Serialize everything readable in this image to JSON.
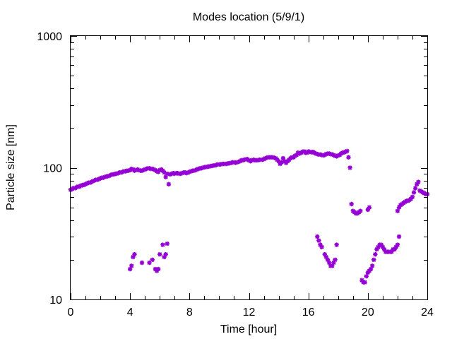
{
  "chart_data": {
    "type": "scatter",
    "title": "Modes location (5/9/1)",
    "xlabel": "Time [hour]",
    "ylabel": "Particle size [nm]",
    "xlim": [
      0,
      24
    ],
    "ylim": [
      10,
      1000
    ],
    "yscale": "log",
    "x_ticks": [
      0,
      4,
      8,
      12,
      16,
      20,
      24
    ],
    "x_tick_labels": [
      "0",
      "4",
      "8",
      "12",
      "16",
      "20",
      "24"
    ],
    "y_ticks": [
      10,
      100,
      1000
    ],
    "y_tick_labels": [
      "10",
      "100",
      "1000"
    ],
    "y_minor_ticks": [
      20,
      30,
      40,
      50,
      60,
      70,
      80,
      90,
      200,
      300,
      400,
      500,
      600,
      700,
      800,
      900
    ],
    "x_minor_ticks": [
      1,
      2,
      3,
      5,
      6,
      7,
      9,
      10,
      11,
      13,
      14,
      15,
      17,
      18,
      19,
      21,
      22,
      23
    ],
    "grid": false,
    "legend": "none",
    "marker_color": "#9400d3",
    "series": [
      {
        "values_xy": [
          [
            0.0,
            68
          ],
          [
            0.1,
            69
          ],
          [
            0.2,
            70
          ],
          [
            0.3,
            70
          ],
          [
            0.4,
            71
          ],
          [
            0.5,
            72
          ],
          [
            0.6,
            72
          ],
          [
            0.7,
            73
          ],
          [
            0.8,
            74
          ],
          [
            0.9,
            74
          ],
          [
            1.0,
            75
          ],
          [
            1.1,
            76
          ],
          [
            1.2,
            77
          ],
          [
            1.3,
            77
          ],
          [
            1.4,
            78
          ],
          [
            1.5,
            79
          ],
          [
            1.6,
            80
          ],
          [
            1.7,
            81
          ],
          [
            1.8,
            81
          ],
          [
            1.9,
            82
          ],
          [
            2.0,
            83
          ],
          [
            2.1,
            84
          ],
          [
            2.2,
            84
          ],
          [
            2.3,
            85
          ],
          [
            2.4,
            86
          ],
          [
            2.5,
            86
          ],
          [
            2.6,
            87
          ],
          [
            2.7,
            88
          ],
          [
            2.8,
            89
          ],
          [
            2.9,
            89
          ],
          [
            3.0,
            90
          ],
          [
            3.1,
            90
          ],
          [
            3.2,
            91
          ],
          [
            3.3,
            92
          ],
          [
            3.4,
            92
          ],
          [
            3.5,
            93
          ],
          [
            3.6,
            94
          ],
          [
            3.7,
            94
          ],
          [
            3.8,
            95
          ],
          [
            3.9,
            95
          ],
          [
            4.0,
            96
          ],
          [
            4.1,
            98
          ],
          [
            4.2,
            97
          ],
          [
            4.3,
            95
          ],
          [
            4.4,
            96
          ],
          [
            4.5,
            97
          ],
          [
            4.6,
            96
          ],
          [
            4.7,
            95
          ],
          [
            4.8,
            95
          ],
          [
            4.9,
            96
          ],
          [
            5.0,
            97
          ],
          [
            5.1,
            98
          ],
          [
            5.2,
            99
          ],
          [
            5.3,
            99
          ],
          [
            5.4,
            98
          ],
          [
            5.5,
            98
          ],
          [
            5.6,
            97
          ],
          [
            5.7,
            96
          ],
          [
            5.8,
            94
          ],
          [
            5.9,
            93
          ],
          [
            6.0,
            96
          ],
          [
            6.1,
            97
          ],
          [
            6.2,
            95
          ],
          [
            6.3,
            92
          ],
          [
            6.4,
            85
          ],
          [
            6.5,
            90
          ],
          [
            6.6,
            75
          ],
          [
            6.7,
            89
          ],
          [
            6.8,
            90
          ],
          [
            6.9,
            91
          ],
          [
            7.0,
            90
          ],
          [
            7.1,
            91
          ],
          [
            7.2,
            91
          ],
          [
            7.3,
            90
          ],
          [
            7.4,
            90
          ],
          [
            7.5,
            91
          ],
          [
            7.6,
            92
          ],
          [
            7.7,
            92
          ],
          [
            7.8,
            91
          ],
          [
            7.9,
            92
          ],
          [
            8.0,
            93
          ],
          [
            8.1,
            94
          ],
          [
            8.2,
            95
          ],
          [
            8.3,
            95
          ],
          [
            8.4,
            96
          ],
          [
            8.5,
            97
          ],
          [
            8.6,
            98
          ],
          [
            8.7,
            99
          ],
          [
            8.8,
            99
          ],
          [
            8.9,
            100
          ],
          [
            9.0,
            101
          ],
          [
            9.1,
            101
          ],
          [
            9.2,
            102
          ],
          [
            9.3,
            102
          ],
          [
            9.4,
            103
          ],
          [
            9.5,
            103
          ],
          [
            9.6,
            104
          ],
          [
            9.7,
            104
          ],
          [
            9.8,
            105
          ],
          [
            9.9,
            106
          ],
          [
            10.0,
            106
          ],
          [
            10.1,
            106
          ],
          [
            10.2,
            107
          ],
          [
            10.3,
            107
          ],
          [
            10.4,
            107
          ],
          [
            10.5,
            107
          ],
          [
            10.6,
            108
          ],
          [
            10.7,
            108
          ],
          [
            10.8,
            109
          ],
          [
            10.9,
            110
          ],
          [
            11.0,
            110
          ],
          [
            11.1,
            109
          ],
          [
            11.2,
            110
          ],
          [
            11.3,
            111
          ],
          [
            11.4,
            112
          ],
          [
            11.5,
            114
          ],
          [
            11.6,
            114
          ],
          [
            11.7,
            115
          ],
          [
            11.8,
            116
          ],
          [
            11.9,
            116
          ],
          [
            12.0,
            114
          ],
          [
            12.1,
            112
          ],
          [
            12.2,
            114
          ],
          [
            12.3,
            115
          ],
          [
            12.4,
            114
          ],
          [
            12.5,
            114
          ],
          [
            12.6,
            114
          ],
          [
            12.7,
            115
          ],
          [
            12.8,
            115
          ],
          [
            12.9,
            115
          ],
          [
            13.0,
            116
          ],
          [
            13.1,
            118
          ],
          [
            13.2,
            119
          ],
          [
            13.3,
            120
          ],
          [
            13.4,
            120
          ],
          [
            13.5,
            120
          ],
          [
            13.6,
            120
          ],
          [
            13.7,
            119
          ],
          [
            13.8,
            118
          ],
          [
            13.9,
            115
          ],
          [
            14.0,
            112
          ],
          [
            14.1,
            107
          ],
          [
            14.2,
            110
          ],
          [
            14.3,
            118
          ],
          [
            14.4,
            112
          ],
          [
            14.5,
            109
          ],
          [
            14.6,
            112
          ],
          [
            14.7,
            115
          ],
          [
            14.8,
            118
          ],
          [
            14.9,
            120
          ],
          [
            15.0,
            120
          ],
          [
            15.1,
            123
          ],
          [
            15.2,
            125
          ],
          [
            15.3,
            130
          ],
          [
            15.4,
            128
          ],
          [
            15.5,
            130
          ],
          [
            15.6,
            132
          ],
          [
            15.7,
            133
          ],
          [
            15.8,
            130
          ],
          [
            15.9,
            130
          ],
          [
            16.0,
            133
          ],
          [
            16.1,
            132
          ],
          [
            16.2,
            131
          ],
          [
            16.3,
            132
          ],
          [
            16.4,
            130
          ],
          [
            16.5,
            128
          ],
          [
            16.6,
            127
          ],
          [
            16.7,
            126
          ],
          [
            16.8,
            126
          ],
          [
            16.9,
            125
          ],
          [
            17.0,
            124
          ],
          [
            17.1,
            125
          ],
          [
            17.2,
            127
          ],
          [
            17.3,
            128
          ],
          [
            17.4,
            128
          ],
          [
            17.5,
            127
          ],
          [
            17.6,
            126
          ],
          [
            17.7,
            125
          ],
          [
            17.8,
            123
          ],
          [
            17.9,
            122
          ],
          [
            18.0,
            124
          ],
          [
            18.1,
            125
          ],
          [
            18.2,
            128
          ],
          [
            18.3,
            130
          ],
          [
            18.4,
            131
          ],
          [
            18.5,
            132
          ],
          [
            18.6,
            134
          ],
          [
            18.7,
            120
          ],
          [
            18.8,
            100
          ],
          [
            18.9,
            53
          ],
          [
            19.0,
            47
          ],
          [
            19.1,
            46
          ],
          [
            19.2,
            45
          ],
          [
            19.3,
            45
          ],
          [
            19.4,
            46
          ],
          [
            19.5,
            47
          ],
          [
            20.0,
            48
          ],
          [
            20.1,
            50
          ],
          [
            22.0,
            47
          ],
          [
            22.1,
            50
          ],
          [
            22.2,
            52
          ],
          [
            22.3,
            53
          ],
          [
            22.4,
            54
          ],
          [
            22.5,
            55
          ],
          [
            22.6,
            56
          ],
          [
            22.7,
            56
          ],
          [
            22.8,
            57
          ],
          [
            22.9,
            58
          ],
          [
            23.0,
            60
          ],
          [
            23.1,
            65
          ],
          [
            23.2,
            70
          ],
          [
            23.3,
            75
          ],
          [
            23.4,
            78
          ],
          [
            23.5,
            67
          ],
          [
            23.6,
            66
          ],
          [
            23.7,
            65
          ],
          [
            23.8,
            64
          ],
          [
            23.9,
            63
          ],
          [
            24.0,
            63
          ],
          [
            4.0,
            17
          ],
          [
            4.1,
            18
          ],
          [
            4.2,
            21
          ],
          [
            4.3,
            22
          ],
          [
            4.8,
            19
          ],
          [
            5.3,
            19
          ],
          [
            5.5,
            20
          ],
          [
            5.7,
            17
          ],
          [
            5.8,
            16.5
          ],
          [
            5.9,
            17
          ],
          [
            6.0,
            22
          ],
          [
            6.2,
            26
          ],
          [
            6.3,
            21
          ],
          [
            6.4,
            22
          ],
          [
            6.5,
            26.5
          ],
          [
            16.6,
            30
          ],
          [
            16.7,
            28
          ],
          [
            16.8,
            26
          ],
          [
            16.9,
            25
          ],
          [
            17.1,
            22
          ],
          [
            17.2,
            21
          ],
          [
            17.3,
            20
          ],
          [
            17.4,
            19
          ],
          [
            17.5,
            18
          ],
          [
            17.6,
            18
          ],
          [
            17.7,
            19
          ],
          [
            17.8,
            20
          ],
          [
            17.9,
            26
          ],
          [
            19.6,
            14
          ],
          [
            19.7,
            13.5
          ],
          [
            19.8,
            13.5
          ],
          [
            19.9,
            15
          ],
          [
            20.0,
            16
          ],
          [
            20.1,
            16.5
          ],
          [
            20.2,
            17
          ],
          [
            20.3,
            18
          ],
          [
            20.4,
            20
          ],
          [
            20.5,
            22
          ],
          [
            20.6,
            24
          ],
          [
            20.7,
            25
          ],
          [
            20.8,
            26
          ],
          [
            20.9,
            26
          ],
          [
            21.0,
            25
          ],
          [
            21.1,
            24
          ],
          [
            21.2,
            23
          ],
          [
            21.3,
            23
          ],
          [
            21.4,
            23
          ],
          [
            21.5,
            23
          ],
          [
            21.6,
            23
          ],
          [
            21.7,
            24
          ],
          [
            21.8,
            24
          ],
          [
            21.9,
            25
          ],
          [
            22.0,
            26
          ],
          [
            22.1,
            30
          ]
        ]
      }
    ]
  }
}
